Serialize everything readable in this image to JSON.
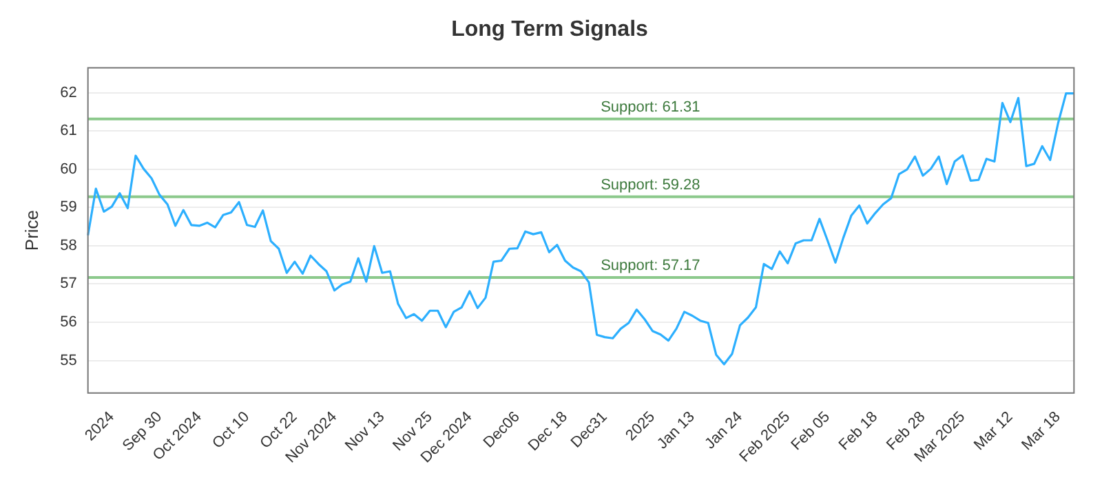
{
  "chart_data": {
    "type": "line",
    "title": "Long Term Signals",
    "ylabel": "Price",
    "categories": [
      null,
      null,
      null,
      "2024",
      null,
      null,
      null,
      null,
      null,
      "Sep 30",
      null,
      null,
      null,
      null,
      "Oct 2024",
      null,
      null,
      null,
      null,
      null,
      "Oct 10",
      null,
      null,
      null,
      null,
      null,
      "Oct 22",
      null,
      null,
      null,
      null,
      "Nov 2024",
      null,
      null,
      null,
      null,
      null,
      "Nov 13",
      null,
      null,
      null,
      null,
      null,
      "Nov 25",
      null,
      null,
      null,
      null,
      "Dec 2024",
      null,
      null,
      null,
      null,
      null,
      "Dec06",
      null,
      null,
      null,
      null,
      null,
      "Dec 18",
      null,
      null,
      null,
      null,
      "Dec31",
      null,
      null,
      null,
      null,
      null,
      "2025",
      null,
      null,
      null,
      null,
      "Jan 13",
      null,
      null,
      null,
      null,
      null,
      "Jan 24",
      null,
      null,
      null,
      null,
      null,
      "Feb 2025",
      null,
      null,
      null,
      null,
      "Feb 05",
      null,
      null,
      null,
      null,
      null,
      "Feb 18",
      null,
      null,
      null,
      null,
      null,
      "Feb 28",
      null,
      null,
      null,
      null,
      "Mar 2025",
      null,
      null,
      null,
      null,
      null,
      "Mar 12",
      null,
      null,
      null,
      null,
      null,
      "Mar 18",
      null,
      null
    ],
    "series": [
      {
        "color": "#2caffe",
        "values": [
          58.27,
          59.49,
          58.89,
          59.02,
          59.37,
          58.98,
          60.35,
          60.01,
          59.76,
          59.33,
          59.08,
          58.52,
          58.93,
          58.54,
          58.52,
          58.6,
          58.48,
          58.8,
          58.87,
          59.14,
          58.54,
          58.49,
          58.92,
          58.12,
          57.92,
          57.29,
          57.58,
          57.27,
          57.74,
          57.52,
          57.33,
          56.83,
          56.99,
          57.06,
          57.67,
          57.06,
          57.99,
          57.29,
          57.33,
          56.48,
          56.11,
          56.21,
          56.04,
          56.3,
          56.3,
          55.87,
          56.27,
          56.39,
          56.81,
          56.37,
          56.64,
          57.58,
          57.61,
          57.92,
          57.93,
          58.37,
          58.3,
          58.35,
          57.83,
          58.02,
          57.61,
          57.43,
          57.33,
          57.04,
          55.67,
          55.61,
          55.58,
          55.83,
          55.98,
          56.33,
          56.08,
          55.77,
          55.68,
          55.52,
          55.83,
          56.27,
          56.17,
          56.04,
          55.98,
          55.15,
          54.9,
          55.17,
          55.92,
          56.12,
          56.39,
          57.52,
          57.39,
          57.85,
          57.54,
          58.06,
          58.14,
          58.14,
          58.7,
          58.14,
          57.56,
          58.21,
          58.79,
          59.05,
          58.58,
          58.85,
          59.08,
          59.24,
          59.87,
          59.99,
          60.33,
          59.83,
          60.01,
          60.33,
          59.61,
          60.2,
          60.36,
          59.7,
          59.72,
          60.27,
          60.2,
          61.73,
          61.23,
          61.86,
          60.08,
          60.14,
          60.6,
          60.24,
          61.2,
          61.98,
          61.98
        ]
      }
    ],
    "ylim": [
      54.15,
      62.65
    ],
    "yticks": [
      55,
      56,
      57,
      58,
      59,
      60,
      61,
      62
    ],
    "grid": "y",
    "legend": false,
    "marker": "none",
    "line_style": "solid",
    "ref_lines": [
      {
        "axis": "y",
        "value": 61.31,
        "label": "Support: 61.31",
        "color": "#8cc98c"
      },
      {
        "axis": "y",
        "value": 59.28,
        "label": "Support: 59.28",
        "color": "#8cc98c"
      },
      {
        "axis": "y",
        "value": 57.17,
        "label": "Support: 57.17",
        "color": "#8cc98c"
      }
    ]
  }
}
